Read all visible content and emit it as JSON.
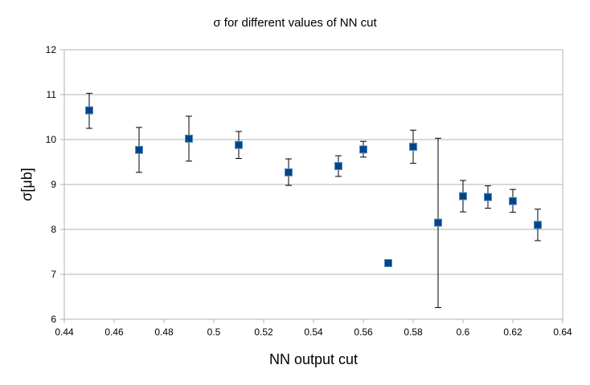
{
  "chart_data": {
    "type": "scatter",
    "title": "σ for different values of NN cut",
    "xlabel": "NN output cut",
    "ylabel": "σ[μb]",
    "xlim": [
      0.44,
      0.64
    ],
    "ylim": [
      6,
      12
    ],
    "xticks": [
      0.44,
      0.46,
      0.48,
      0.5,
      0.52,
      0.54,
      0.56,
      0.58,
      0.6,
      0.62,
      0.64
    ],
    "xtick_labels": [
      "0.44",
      "0.46",
      "0.48",
      "0.5",
      "0.52",
      "0.54",
      "0.56",
      "0.58",
      "0.6",
      "0.62",
      "0.64"
    ],
    "yticks": [
      6,
      7,
      8,
      9,
      10,
      11,
      12
    ],
    "ytick_labels": [
      "6",
      "7",
      "8",
      "9",
      "10",
      "11",
      "12"
    ],
    "grid": "horizontal",
    "marker_color": "#004586",
    "points": [
      {
        "x": 0.45,
        "y": 10.65,
        "ylow": 10.25,
        "yhigh": 11.03
      },
      {
        "x": 0.47,
        "y": 9.77,
        "ylow": 9.27,
        "yhigh": 10.27
      },
      {
        "x": 0.49,
        "y": 10.02,
        "ylow": 9.52,
        "yhigh": 10.52
      },
      {
        "x": 0.51,
        "y": 9.88,
        "ylow": 9.58,
        "yhigh": 10.18
      },
      {
        "x": 0.53,
        "y": 9.27,
        "ylow": 8.98,
        "yhigh": 9.57
      },
      {
        "x": 0.55,
        "y": 9.41,
        "ylow": 9.18,
        "yhigh": 9.64
      },
      {
        "x": 0.56,
        "y": 9.78,
        "ylow": 9.61,
        "yhigh": 9.96
      },
      {
        "x": 0.57,
        "y": 7.25,
        "ylow": 7.21,
        "yhigh": 7.29
      },
      {
        "x": 0.58,
        "y": 9.84,
        "ylow": 9.47,
        "yhigh": 10.21
      },
      {
        "x": 0.59,
        "y": 8.15,
        "ylow": 6.26,
        "yhigh": 10.03
      },
      {
        "x": 0.6,
        "y": 8.74,
        "ylow": 8.39,
        "yhigh": 9.09
      },
      {
        "x": 0.61,
        "y": 8.72,
        "ylow": 8.47,
        "yhigh": 8.97
      },
      {
        "x": 0.62,
        "y": 8.63,
        "ylow": 8.38,
        "yhigh": 8.89
      },
      {
        "x": 0.63,
        "y": 8.1,
        "ylow": 7.75,
        "yhigh": 8.45
      }
    ]
  }
}
